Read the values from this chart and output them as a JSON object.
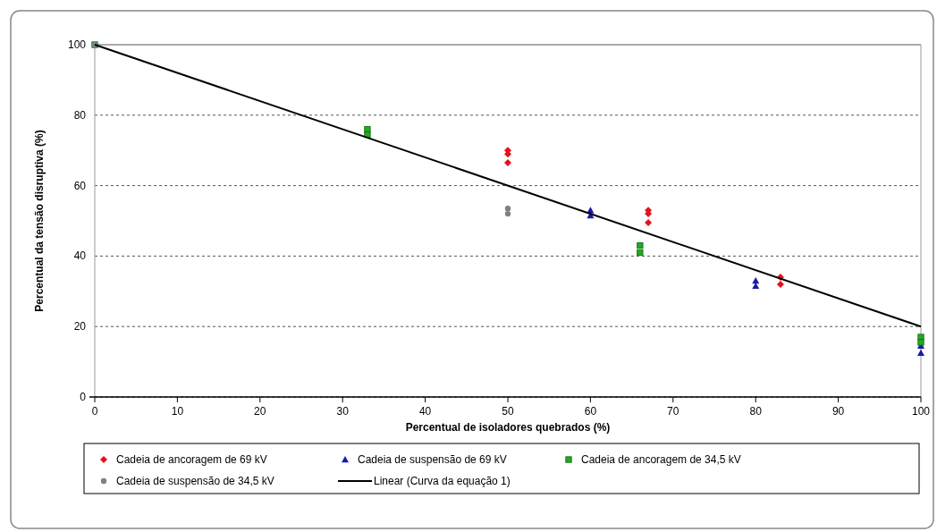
{
  "chart_data": {
    "type": "scatter",
    "xlabel": "Percentual de isoladores quebrados (%)",
    "ylabel": "Percentual da tensão disruptiva (%)",
    "xlim": [
      0,
      100
    ],
    "ylim": [
      0,
      100
    ],
    "xticks": [
      0,
      10,
      20,
      30,
      40,
      50,
      60,
      70,
      80,
      90,
      100
    ],
    "yticks": [
      0,
      20,
      40,
      60,
      80,
      100
    ],
    "grid": "y",
    "legend": "bottom",
    "series": [
      {
        "name": "Cadeia de ancoragem de 69 kV",
        "color": "#e8101c",
        "marker": "diamond",
        "x": [
          50,
          50,
          50,
          67,
          67,
          67,
          83,
          83
        ],
        "values": [
          70,
          69,
          66.5,
          53,
          52,
          49.5,
          34,
          32
        ]
      },
      {
        "name": "Cadeia de suspensão de 69 kV",
        "color": "#1a1aa8",
        "marker": "triangle",
        "x": [
          60,
          60,
          80,
          80,
          100,
          100
        ],
        "values": [
          53,
          51.5,
          33,
          31.5,
          14.5,
          12.5
        ]
      },
      {
        "name": "Cadeia de ancoragem de 34,5 kV",
        "color": "#22aa22",
        "marker": "square",
        "x": [
          0,
          33,
          33,
          66,
          66,
          100,
          100
        ],
        "values": [
          100,
          76,
          74.5,
          43,
          41,
          17,
          15.5
        ]
      },
      {
        "name": "Cadeia de suspensão de 34,5 kV",
        "color": "#808080",
        "marker": "circle",
        "x": [
          0,
          50,
          50
        ],
        "values": [
          100,
          53.5,
          52
        ]
      },
      {
        "name": "Linear (Curva da equação 1)",
        "type": "line",
        "color": "#000000",
        "marker": "none",
        "x": [
          0,
          100
        ],
        "values": [
          100,
          20
        ]
      }
    ]
  }
}
